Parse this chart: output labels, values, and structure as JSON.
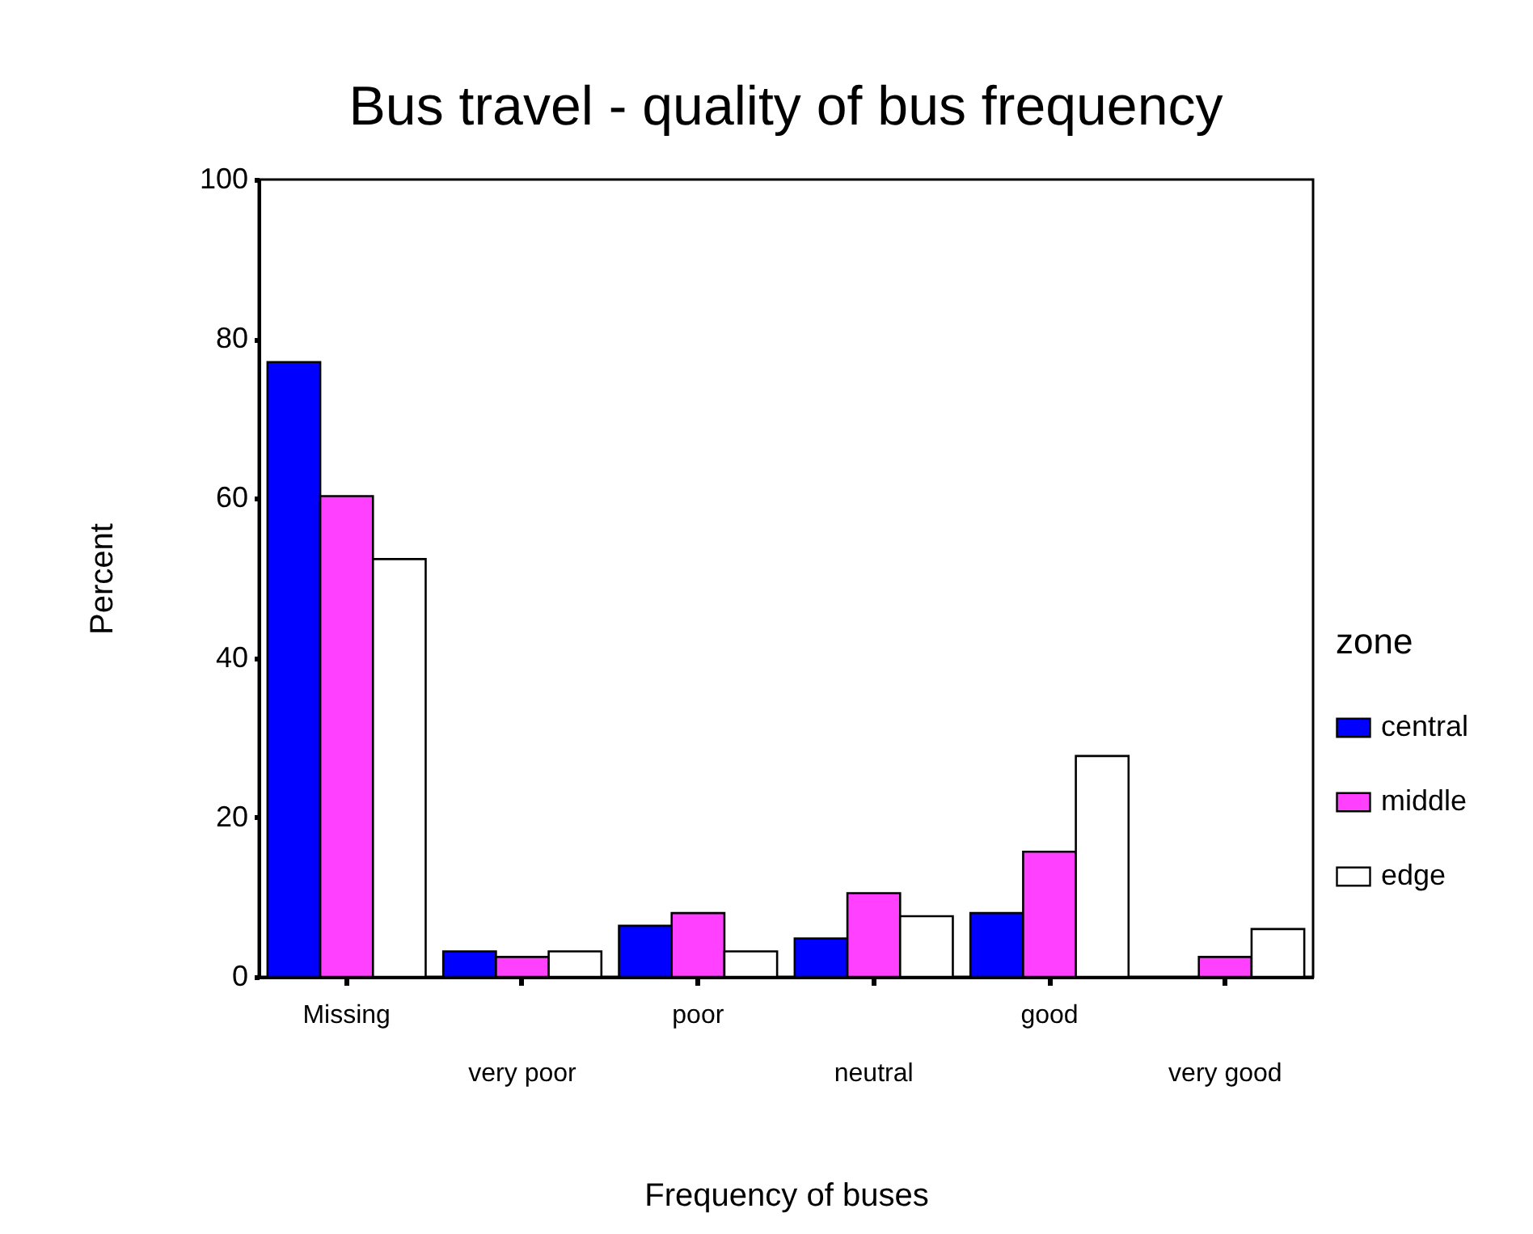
{
  "chart_data": {
    "type": "bar",
    "title": "Bus travel - quality of bus frequency",
    "xlabel": "Frequency of buses",
    "ylabel": "Percent",
    "legend_title": "zone",
    "categories": [
      "Missing",
      "very poor",
      "poor",
      "neutral",
      "good",
      "very good"
    ],
    "series": [
      {
        "name": "central",
        "color": "#0000ff",
        "values": [
          77.1,
          3.2,
          6.4,
          4.8,
          8.0,
          null
        ]
      },
      {
        "name": "middle",
        "color": "#ff40ff",
        "values": [
          60.3,
          2.5,
          8.0,
          10.5,
          15.7,
          2.5
        ]
      },
      {
        "name": "edge",
        "color": "#ffffff",
        "values": [
          52.4,
          3.2,
          3.2,
          7.6,
          27.7,
          6.0
        ]
      }
    ],
    "ylim": [
      0,
      100
    ],
    "yticks": [
      0,
      20,
      40,
      60,
      80,
      100
    ],
    "grid": false,
    "legend": "right"
  }
}
